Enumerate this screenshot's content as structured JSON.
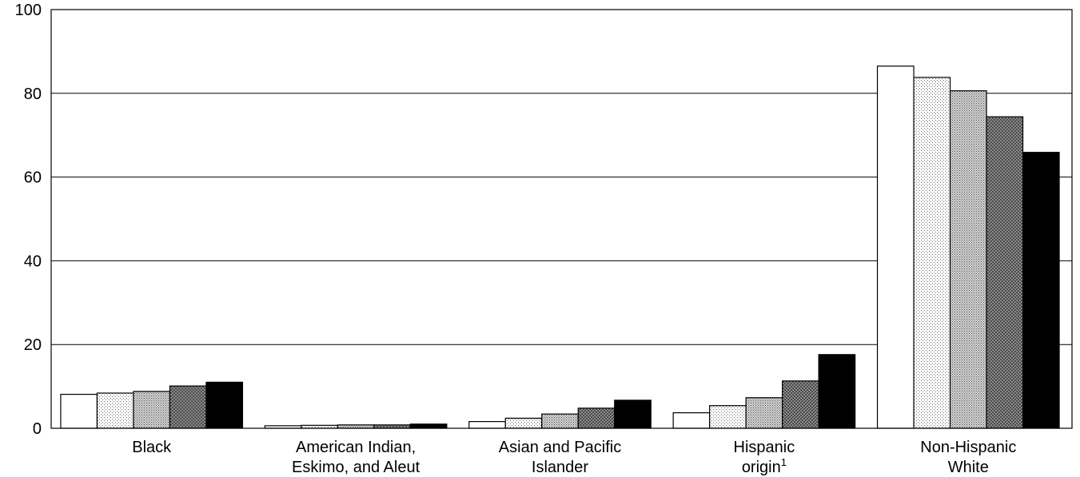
{
  "chart_data": {
    "type": "bar",
    "title": "",
    "xlabel": "",
    "ylabel": "",
    "ylim": [
      0,
      100
    ],
    "yticks": [
      "0",
      "20",
      "40",
      "60",
      "80",
      "100"
    ],
    "grid": true,
    "legend": "none",
    "categories": [
      [
        "Black"
      ],
      [
        "American Indian,",
        "Eskimo, and Aleut"
      ],
      [
        "Asian and Pacific",
        "Islander"
      ],
      [
        "Hispanic",
        "origin"
      ],
      [
        "Non-Hispanic",
        "White"
      ]
    ],
    "footnote_marks": [
      "",
      "",
      "",
      "1",
      ""
    ],
    "series": [
      {
        "values": [
          8.1,
          0.6,
          1.6,
          3.7,
          86.5
        ],
        "fill": "white"
      },
      {
        "values": [
          8.4,
          0.7,
          2.4,
          5.4,
          83.8
        ],
        "fill": "light-dots"
      },
      {
        "values": [
          8.8,
          0.8,
          3.4,
          7.3,
          80.6
        ],
        "fill": "medium-dots"
      },
      {
        "values": [
          10.1,
          0.8,
          4.8,
          11.3,
          74.4
        ],
        "fill": "dark-crosshatch"
      },
      {
        "values": [
          11.0,
          1.0,
          6.7,
          17.6,
          65.9
        ],
        "fill": "black"
      }
    ],
    "colors": {
      "axis": "#000000",
      "grid": "#000000",
      "bar_outline": "#000000"
    }
  }
}
